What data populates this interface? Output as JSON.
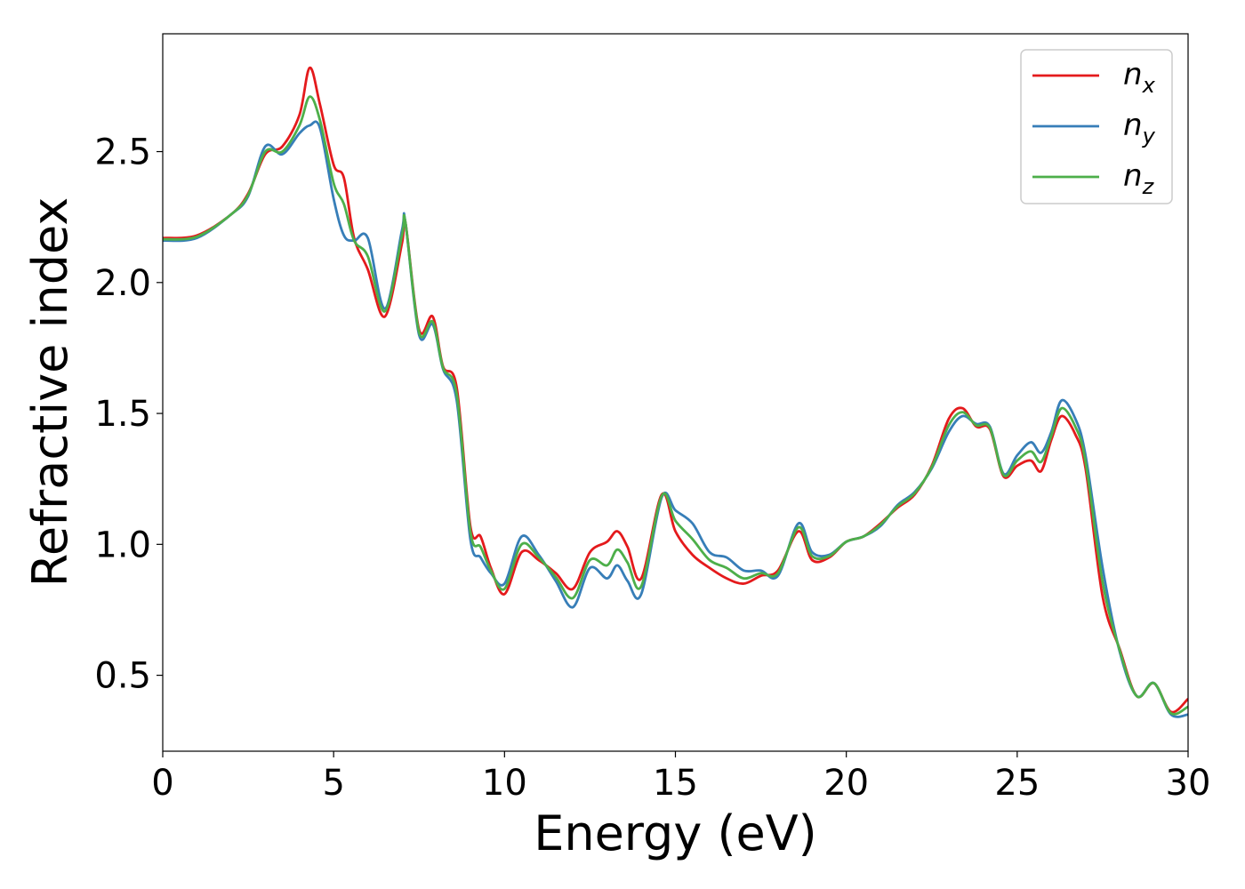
{
  "chart_data": {
    "type": "line",
    "xlabel": "Energy (eV)",
    "ylabel": "Refractive index",
    "xlim": [
      0,
      30
    ],
    "ylim": [
      0.21,
      2.95
    ],
    "xticks": [
      0,
      5,
      10,
      15,
      20,
      25,
      30
    ],
    "xtick_labels": [
      "0",
      "5",
      "10",
      "15",
      "20",
      "25",
      "30"
    ],
    "yticks": [
      0.5,
      1.0,
      1.5,
      2.0,
      2.5
    ],
    "ytick_labels": [
      "0.5",
      "1.0",
      "1.5",
      "2.0",
      "2.5"
    ],
    "grid": false,
    "legend_position": "top-right",
    "series": [
      {
        "name": "n",
        "subscript": "x",
        "color": "#e41a1c",
        "x": [
          0,
          1,
          2,
          2.5,
          3,
          3.5,
          4,
          4.3,
          4.6,
          5,
          5.3,
          5.6,
          6,
          6.5,
          7,
          7.1,
          7.5,
          7.9,
          8.2,
          8.6,
          9,
          9.3,
          9.6,
          10,
          10.5,
          11,
          11.5,
          12,
          12.5,
          13,
          13.3,
          13.6,
          14,
          14.6,
          15,
          15.5,
          16,
          16.5,
          17,
          17.5,
          18,
          18.6,
          19,
          19.5,
          20,
          20.5,
          21,
          21.5,
          22,
          22.5,
          23,
          23.4,
          23.8,
          24.2,
          24.6,
          25,
          25.4,
          25.7,
          26,
          26.3,
          26.7,
          27,
          27.5,
          28,
          28.5,
          29,
          29.5,
          30
        ],
        "y": [
          2.17,
          2.18,
          2.26,
          2.34,
          2.49,
          2.52,
          2.64,
          2.82,
          2.68,
          2.45,
          2.4,
          2.17,
          2.05,
          1.87,
          2.15,
          2.23,
          1.82,
          1.87,
          1.68,
          1.6,
          1.07,
          1.03,
          0.91,
          0.81,
          0.97,
          0.94,
          0.89,
          0.83,
          0.97,
          1.01,
          1.05,
          0.99,
          0.87,
          1.19,
          1.05,
          0.96,
          0.91,
          0.87,
          0.85,
          0.88,
          0.9,
          1.05,
          0.94,
          0.95,
          1.01,
          1.03,
          1.08,
          1.14,
          1.19,
          1.3,
          1.48,
          1.52,
          1.45,
          1.44,
          1.26,
          1.3,
          1.32,
          1.28,
          1.4,
          1.49,
          1.42,
          1.29,
          0.8,
          0.6,
          0.42,
          0.47,
          0.36,
          0.41
        ]
      },
      {
        "name": "n",
        "subscript": "y",
        "color": "#377eb8",
        "x": [
          0,
          1,
          2,
          2.5,
          3,
          3.5,
          4,
          4.3,
          4.6,
          5,
          5.3,
          5.6,
          6,
          6.5,
          7,
          7.1,
          7.5,
          7.9,
          8.2,
          8.6,
          9,
          9.3,
          9.6,
          10,
          10.5,
          11,
          11.5,
          12,
          12.5,
          13,
          13.3,
          13.6,
          14,
          14.6,
          15,
          15.5,
          16,
          16.5,
          17,
          17.5,
          18,
          18.6,
          19,
          19.5,
          20,
          20.5,
          21,
          21.5,
          22,
          22.5,
          23,
          23.4,
          23.8,
          24.2,
          24.6,
          25,
          25.4,
          25.7,
          26,
          26.3,
          26.7,
          27,
          27.5,
          28,
          28.5,
          29,
          29.5,
          30
        ],
        "y": [
          2.16,
          2.17,
          2.26,
          2.33,
          2.52,
          2.49,
          2.57,
          2.6,
          2.59,
          2.32,
          2.18,
          2.16,
          2.17,
          1.9,
          2.2,
          2.23,
          1.8,
          1.84,
          1.67,
          1.55,
          1.02,
          0.95,
          0.89,
          0.85,
          1.03,
          0.96,
          0.86,
          0.76,
          0.91,
          0.87,
          0.92,
          0.86,
          0.81,
          1.18,
          1.13,
          1.08,
          0.97,
          0.95,
          0.9,
          0.9,
          0.88,
          1.08,
          0.97,
          0.96,
          1.01,
          1.03,
          1.07,
          1.15,
          1.2,
          1.29,
          1.43,
          1.49,
          1.46,
          1.45,
          1.27,
          1.34,
          1.39,
          1.35,
          1.43,
          1.55,
          1.48,
          1.34,
          0.91,
          0.59,
          0.42,
          0.47,
          0.35,
          0.35
        ]
      },
      {
        "name": "n",
        "subscript": "z",
        "color": "#4daf4a",
        "x": [
          0,
          1,
          2,
          2.5,
          3,
          3.5,
          4,
          4.3,
          4.6,
          5,
          5.3,
          5.6,
          6,
          6.5,
          7,
          7.1,
          7.5,
          7.9,
          8.2,
          8.6,
          9,
          9.3,
          9.6,
          10,
          10.5,
          11,
          11.5,
          12,
          12.5,
          13,
          13.3,
          13.6,
          14,
          14.6,
          15,
          15.5,
          16,
          16.5,
          17,
          17.5,
          18,
          18.6,
          19,
          19.5,
          20,
          20.5,
          21,
          21.5,
          22,
          22.5,
          23,
          23.4,
          23.8,
          24.2,
          24.6,
          25,
          25.4,
          25.7,
          26,
          26.3,
          26.7,
          27,
          27.5,
          28,
          28.5,
          29,
          29.5,
          30
        ],
        "y": [
          2.165,
          2.175,
          2.26,
          2.335,
          2.5,
          2.5,
          2.6,
          2.71,
          2.62,
          2.38,
          2.3,
          2.16,
          2.1,
          1.89,
          2.18,
          2.23,
          1.81,
          1.85,
          1.675,
          1.575,
          1.05,
          0.99,
          0.9,
          0.83,
          1.0,
          0.95,
          0.875,
          0.795,
          0.94,
          0.92,
          0.98,
          0.93,
          0.84,
          1.185,
          1.09,
          1.02,
          0.94,
          0.91,
          0.87,
          0.89,
          0.89,
          1.065,
          0.955,
          0.955,
          1.01,
          1.03,
          1.075,
          1.145,
          1.195,
          1.295,
          1.455,
          1.505,
          1.455,
          1.445,
          1.265,
          1.32,
          1.355,
          1.315,
          1.415,
          1.52,
          1.45,
          1.315,
          0.855,
          0.595,
          0.42,
          0.47,
          0.355,
          0.38
        ]
      }
    ]
  }
}
